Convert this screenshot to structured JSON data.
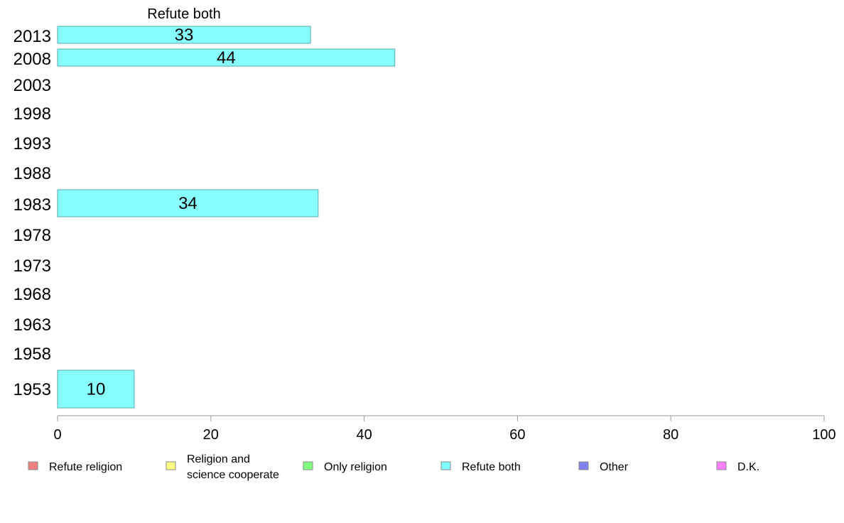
{
  "chart_data": {
    "type": "bar",
    "orientation": "horizontal",
    "title": "Refute both",
    "categories": [
      "2013",
      "2008",
      "2003",
      "1998",
      "1993",
      "1988",
      "1983",
      "1978",
      "1973",
      "1968",
      "1963",
      "1958",
      "1953"
    ],
    "series": [
      {
        "name": "Refute both",
        "values": [
          33,
          44,
          null,
          null,
          null,
          null,
          34,
          null,
          null,
          null,
          null,
          null,
          10
        ]
      }
    ],
    "xlim": [
      0,
      100
    ],
    "xticks": [
      "0",
      "20",
      "40",
      "60",
      "80",
      "100"
    ],
    "grid": false,
    "legend": {
      "placement": "bottom",
      "items": [
        {
          "label": "Refute religion",
          "color": "#f08080"
        },
        {
          "label": "Religion and",
          "label2": "science cooperate",
          "color": "#ffff80"
        },
        {
          "label": "Only religion",
          "color": "#80ff80"
        },
        {
          "label": "Refute both",
          "color": "#80ffff"
        },
        {
          "label": "Other",
          "color": "#8080f0"
        },
        {
          "label": "D.K.",
          "color": "#ff80ff"
        }
      ]
    },
    "bar_color": "#88ffff",
    "bar_stroke": "#5aa9a9"
  }
}
